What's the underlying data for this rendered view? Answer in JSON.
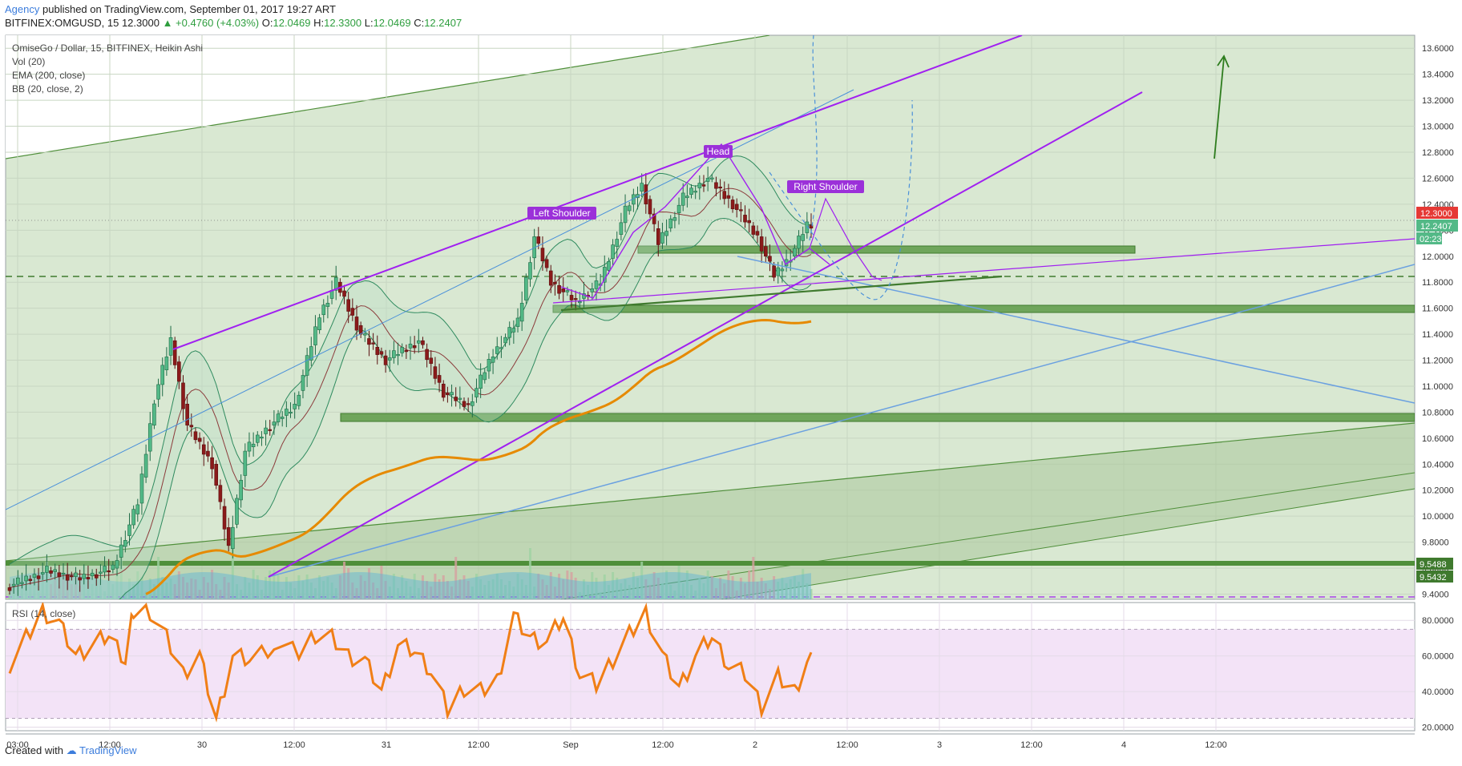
{
  "header": {
    "author": "Agency",
    "published_text": "published on TradingView.com, September 01, 2017 19:27 ART",
    "symbol": "BITFINEX:OMGUSD, 15",
    "last": "12.3000",
    "change": "▲ +0.4760 (+4.03%)",
    "o_label": "O:",
    "o_value": "12.0469",
    "h_label": "H:",
    "h_value": "12.3300",
    "l_label": "L:",
    "l_value": "12.0469",
    "c_label": "C:",
    "c_value": "12.2407"
  },
  "legend": {
    "title": "OmiseGo / Dollar, 15, BITFINEX, Heikin Ashi",
    "vol": "Vol (20)",
    "ema": "EMA (200, close)",
    "bb": "BB (20, close, 2)",
    "rsi": "RSI (14, close)"
  },
  "annotations": {
    "left_shoulder": "Left Shoulder",
    "head": "Head",
    "right_shoulder": "Right Shoulder"
  },
  "price_badges": {
    "high": "12.3000",
    "close": "12.2407",
    "countdown": "02:23",
    "level1": "9.5488",
    "level2": "9.5432"
  },
  "footer": {
    "created_with": "Created with",
    "brand": "TradingView"
  },
  "colors": {
    "bull": "#53b987",
    "bear": "#8b1a1a",
    "pattern": "#a020f0",
    "zone": "#4f8f3a",
    "ema": "#e68a00",
    "rsi": "#f07f16",
    "trend_blue": "#4a90d9"
  },
  "chart_data": {
    "type": "candlestick",
    "style": "Heikin Ashi",
    "price_axis": {
      "ylim": [
        9.36,
        13.7
      ],
      "ticks": [
        "9.4000",
        "9.6000",
        "9.8000",
        "10.0000",
        "10.2000",
        "10.4000",
        "10.6000",
        "10.8000",
        "11.0000",
        "11.2000",
        "11.4000",
        "11.6000",
        "11.8000",
        "12.0000",
        "12.2000",
        "12.4000",
        "12.6000",
        "12.8000",
        "13.0000",
        "13.2000",
        "13.4000",
        "13.6000"
      ]
    },
    "rsi_axis": {
      "ylim": [
        18,
        90
      ],
      "ticks": [
        "20.0000",
        "40.0000",
        "60.0000",
        "80.0000"
      ],
      "bands": [
        25,
        75
      ]
    },
    "time_axis": {
      "ticks": [
        "03:00",
        "12:00",
        "30",
        "12:00",
        "31",
        "12:00",
        "Sep",
        "12:00",
        "2",
        "12:00",
        "3",
        "12:00",
        "4",
        "12:00"
      ]
    },
    "price_path": [
      [
        0,
        9.45
      ],
      [
        10,
        9.58
      ],
      [
        18,
        9.52
      ],
      [
        26,
        9.6
      ],
      [
        32,
        10.1
      ],
      [
        36,
        10.9
      ],
      [
        40,
        11.35
      ],
      [
        44,
        10.7
      ],
      [
        50,
        10.4
      ],
      [
        54,
        9.75
      ],
      [
        58,
        10.5
      ],
      [
        64,
        10.7
      ],
      [
        70,
        10.85
      ],
      [
        76,
        11.55
      ],
      [
        80,
        11.8
      ],
      [
        86,
        11.4
      ],
      [
        92,
        11.2
      ],
      [
        100,
        11.35
      ],
      [
        106,
        10.95
      ],
      [
        112,
        10.85
      ],
      [
        118,
        11.25
      ],
      [
        124,
        11.5
      ],
      [
        128,
        12.15
      ],
      [
        132,
        11.8
      ],
      [
        138,
        11.65
      ],
      [
        144,
        11.8
      ],
      [
        150,
        12.35
      ],
      [
        154,
        12.55
      ],
      [
        158,
        12.1
      ],
      [
        164,
        12.45
      ],
      [
        170,
        12.6
      ],
      [
        176,
        12.4
      ],
      [
        182,
        12.15
      ],
      [
        186,
        11.85
      ],
      [
        190,
        12.0
      ],
      [
        194,
        12.24
      ]
    ],
    "rsi_path": [
      [
        0,
        55
      ],
      [
        4,
        70
      ],
      [
        8,
        85
      ],
      [
        12,
        78
      ],
      [
        16,
        60
      ],
      [
        20,
        66
      ],
      [
        24,
        72
      ],
      [
        28,
        58
      ],
      [
        30,
        85
      ],
      [
        34,
        85
      ],
      [
        38,
        70
      ],
      [
        42,
        50
      ],
      [
        46,
        60
      ],
      [
        50,
        24
      ],
      [
        54,
        60
      ],
      [
        58,
        58
      ],
      [
        64,
        66
      ],
      [
        70,
        62
      ],
      [
        74,
        72
      ],
      [
        78,
        70
      ],
      [
        82,
        60
      ],
      [
        86,
        57
      ],
      [
        90,
        40
      ],
      [
        94,
        66
      ],
      [
        98,
        63
      ],
      [
        102,
        52
      ],
      [
        106,
        30
      ],
      [
        110,
        42
      ],
      [
        114,
        40
      ],
      [
        118,
        46
      ],
      [
        122,
        82
      ],
      [
        126,
        70
      ],
      [
        130,
        68
      ],
      [
        134,
        82
      ],
      [
        138,
        50
      ],
      [
        142,
        44
      ],
      [
        146,
        58
      ],
      [
        150,
        72
      ],
      [
        154,
        84
      ],
      [
        158,
        60
      ],
      [
        162,
        42
      ],
      [
        166,
        60
      ],
      [
        170,
        71
      ],
      [
        174,
        55
      ],
      [
        178,
        50
      ],
      [
        182,
        32
      ],
      [
        186,
        48
      ],
      [
        190,
        40
      ],
      [
        194,
        62
      ]
    ]
  }
}
